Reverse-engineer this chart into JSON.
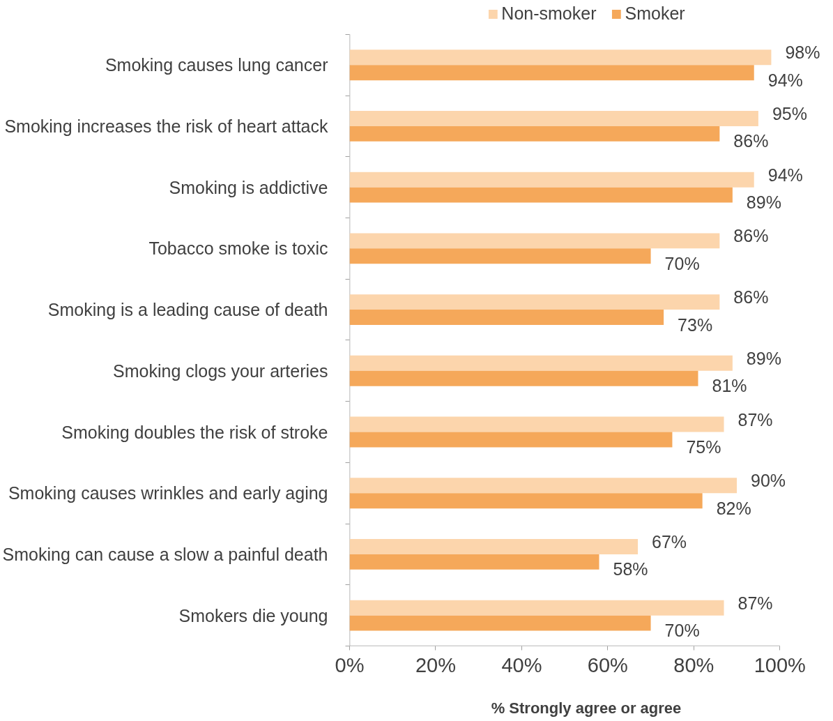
{
  "chart_data": {
    "type": "bar",
    "orientation": "horizontal",
    "xlabel": "% Strongly agree or agree",
    "categories": [
      "Smoking causes lung cancer",
      "Smoking increases the risk of heart attack",
      "Smoking is addictive",
      "Tobacco smoke is toxic",
      "Smoking is a leading cause of death",
      "Smoking clogs your arteries",
      "Smoking doubles the risk of stroke",
      "Smoking causes wrinkles and early aging",
      "Smoking can cause a slow a painful death",
      "Smokers die young"
    ],
    "series": [
      {
        "name": "Non-smoker",
        "color": "#fcd5ac",
        "values": [
          98,
          95,
          94,
          86,
          86,
          89,
          87,
          90,
          67,
          87
        ],
        "value_labels": [
          "98%",
          "95%",
          "94%",
          "86%",
          "86%",
          "89%",
          "87%",
          "90%",
          "67%",
          "87%"
        ]
      },
      {
        "name": "Smoker",
        "color": "#f5a85a",
        "values": [
          94,
          86,
          89,
          70,
          73,
          81,
          75,
          82,
          58,
          70
        ],
        "value_labels": [
          "94%",
          "86%",
          "89%",
          "70%",
          "73%",
          "81%",
          "75%",
          "82%",
          "58%",
          "70%"
        ]
      }
    ],
    "xlim": [
      0,
      100
    ],
    "xticks": [
      {
        "value": 0,
        "label": "0%"
      },
      {
        "value": 20,
        "label": "20%"
      },
      {
        "value": 40,
        "label": "40%"
      },
      {
        "value": 60,
        "label": "60%"
      },
      {
        "value": 80,
        "label": "80%"
      },
      {
        "value": 100,
        "label": "100%"
      }
    ],
    "grid": false,
    "legend": "top"
  }
}
